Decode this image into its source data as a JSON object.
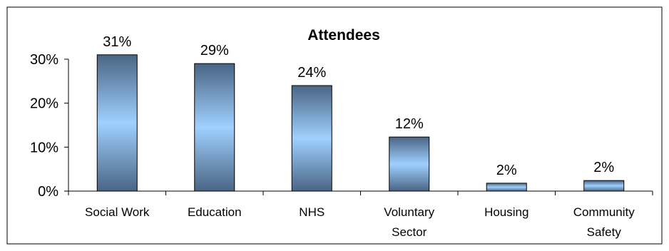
{
  "chart_data": {
    "type": "bar",
    "title": "Attendees",
    "xlabel": "",
    "ylabel": "",
    "categories": [
      [
        "Social Work"
      ],
      [
        "Education"
      ],
      [
        "NHS"
      ],
      [
        "Voluntary",
        "Sector"
      ],
      [
        "Housing"
      ],
      [
        "Community",
        "Safety"
      ]
    ],
    "values": [
      31,
      29,
      24,
      12.3,
      1.8,
      2.4
    ],
    "data_labels": [
      "31%",
      "29%",
      "24%",
      "12%",
      "2%",
      "2%"
    ],
    "ylim": [
      0,
      30
    ],
    "yticks": [
      0,
      10,
      20,
      30
    ],
    "ytick_labels": [
      "0%",
      "10%",
      "20%",
      "30%"
    ],
    "grid": false,
    "legend": "none",
    "colors": {
      "bar_edge": "#9cccf8",
      "bar_center": "#9fd0ff",
      "bar_dark": "#4a6584",
      "border": "#000000"
    }
  }
}
